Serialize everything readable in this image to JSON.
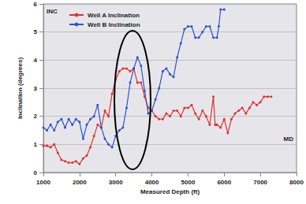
{
  "chart_data": {
    "type": "line",
    "x_label": "Measured Depth (ft)",
    "y_label": "Inclination (degrees)",
    "annotations": [
      "INC",
      "MD"
    ],
    "xlim": [
      1000,
      8000
    ],
    "xticks": [
      1000,
      2000,
      3000,
      4000,
      5000,
      6000,
      7000,
      8000
    ],
    "ylim": [
      0,
      6
    ],
    "yticks": [
      0,
      1,
      2,
      3,
      4,
      5,
      6
    ],
    "grid": true,
    "legend": "upper left",
    "series": [
      {
        "name": "Well A Inclination",
        "color": "#e03030",
        "marker": "circle",
        "x": [
          1000,
          1100,
          1200,
          1300,
          1400,
          1500,
          1600,
          1700,
          1800,
          1900,
          2000,
          2100,
          2200,
          2300,
          2400,
          2500,
          2600,
          2700,
          2800,
          2900,
          3000,
          3100,
          3200,
          3300,
          3400,
          3500,
          3600,
          3700,
          3800,
          3900,
          4000,
          4100,
          4200,
          4300,
          4400,
          4500,
          4600,
          4700,
          4800,
          4900,
          5000,
          5100,
          5200,
          5300,
          5400,
          5500,
          5600,
          5700,
          5750,
          5800,
          5900,
          6000,
          6100,
          6200,
          6300,
          6400,
          6500,
          6600,
          6700,
          6800,
          6900,
          7000,
          7100,
          7200,
          7300
        ],
        "values": [
          0.95,
          0.95,
          0.9,
          1.0,
          0.7,
          0.45,
          0.4,
          0.35,
          0.35,
          0.4,
          0.3,
          0.5,
          0.6,
          0.9,
          1.3,
          1.7,
          1.6,
          2.2,
          2.0,
          2.8,
          3.3,
          3.6,
          3.7,
          3.7,
          3.6,
          3.7,
          3.2,
          3.2,
          2.7,
          2.3,
          2.2,
          2.0,
          1.9,
          1.9,
          2.1,
          2.0,
          2.2,
          2.2,
          2.0,
          2.3,
          2.3,
          2.4,
          2.1,
          1.9,
          2.2,
          2.0,
          1.7,
          2.7,
          1.7,
          1.7,
          1.6,
          1.9,
          1.4,
          1.9,
          2.1,
          2.2,
          2.3,
          2.1,
          2.3,
          2.5,
          2.4,
          2.5,
          2.7,
          2.7,
          2.7
        ]
      },
      {
        "name": "Well B Inclination",
        "color": "#3050d0",
        "marker": "circle",
        "x": [
          1000,
          1100,
          1200,
          1300,
          1400,
          1500,
          1600,
          1700,
          1800,
          1900,
          2000,
          2100,
          2200,
          2300,
          2400,
          2500,
          2600,
          2700,
          2800,
          2900,
          3000,
          3100,
          3200,
          3300,
          3400,
          3500,
          3600,
          3700,
          3800,
          3900,
          4000,
          4100,
          4200,
          4300,
          4400,
          4500,
          4600,
          4700,
          4800,
          4900,
          5000,
          5100,
          5200,
          5300,
          5400,
          5500,
          5600,
          5700,
          5800,
          5850,
          5900,
          6000
        ],
        "values": [
          1.6,
          1.5,
          1.7,
          1.5,
          1.8,
          1.9,
          1.6,
          1.9,
          1.7,
          1.9,
          1.8,
          1.2,
          1.7,
          1.9,
          2.0,
          2.4,
          1.6,
          1.2,
          1.0,
          0.9,
          1.3,
          1.5,
          1.6,
          2.3,
          3.2,
          3.7,
          4.1,
          3.8,
          2.9,
          2.1,
          2.2,
          2.6,
          3.0,
          3.6,
          3.7,
          3.5,
          3.4,
          4.1,
          4.6,
          5.1,
          5.2,
          5.2,
          4.8,
          4.8,
          5.0,
          5.2,
          5.2,
          4.8,
          4.8,
          5.2,
          5.8,
          5.8
        ]
      }
    ]
  }
}
